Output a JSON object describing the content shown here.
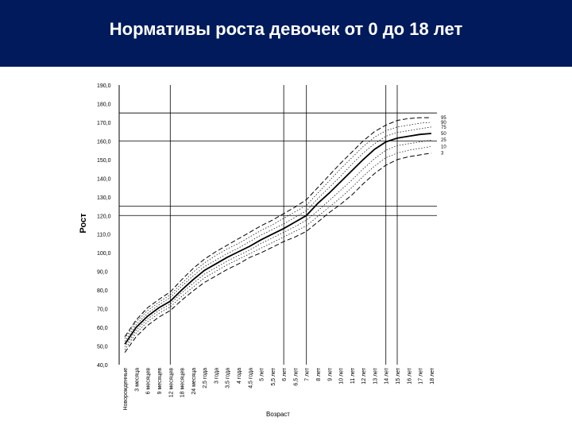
{
  "header": {
    "title": "Нормативы роста девочек от 0 до 18 лет",
    "background_color": "#001a5c"
  },
  "chart_data": {
    "type": "line",
    "title": "Нормативы роста девочек от 0 до 18 лет",
    "xlabel": "Возраст",
    "ylabel": "Рост",
    "ylim": [
      40,
      190
    ],
    "y_ticks": [
      "190,0",
      "180,0",
      "170,0",
      "160,0",
      "150,0",
      "140,0",
      "130,0",
      "120,0",
      "110,0",
      "100,0",
      "90,0",
      "80,0",
      "70,0",
      "60,0",
      "50,0",
      "40,0"
    ],
    "categories": [
      "Новорожденные",
      "3 месяца",
      "6 месяцев",
      "9 месяцев",
      "12 месяцев",
      "18 месяцев",
      "24 месяца",
      "2,5 года",
      "3 года",
      "3,5 года",
      "4 года",
      "4,5 года",
      "5 лет",
      "5,5 лет",
      "6 лет",
      "6,5 лет",
      "7 лет",
      "8 лет",
      "9 лет",
      "10 лет",
      "11 лет",
      "12 лет",
      "13 лет",
      "14 лет",
      "15 лет",
      "16 лет",
      "17 лет",
      "18 лет"
    ],
    "series": [
      {
        "name": "3",
        "style": "dashed",
        "values": [
          46.5,
          55.0,
          61.0,
          65.5,
          69.0,
          74.5,
          79.5,
          84.0,
          87.5,
          91.0,
          94.0,
          97.5,
          100.0,
          103.0,
          106.0,
          108.5,
          111.5,
          116.5,
          121.5,
          126.0,
          131.0,
          137.0,
          142.5,
          147.0,
          150.0,
          151.5,
          152.5,
          153.5
        ]
      },
      {
        "name": "10",
        "style": "dotted",
        "values": [
          48.0,
          57.0,
          63.0,
          67.5,
          71.0,
          76.5,
          81.5,
          86.5,
          90.0,
          93.5,
          96.5,
          99.5,
          102.5,
          105.5,
          108.5,
          111.5,
          114.5,
          119.5,
          124.5,
          129.5,
          135.0,
          141.0,
          146.5,
          151.0,
          153.5,
          155.0,
          156.0,
          157.0
        ]
      },
      {
        "name": "25",
        "style": "dotted",
        "values": [
          49.5,
          58.5,
          64.5,
          69.0,
          72.5,
          78.5,
          83.5,
          88.5,
          92.0,
          95.5,
          98.5,
          101.5,
          105.0,
          108.0,
          111.0,
          114.0,
          117.5,
          122.5,
          128.0,
          133.5,
          139.0,
          145.0,
          150.5,
          155.0,
          157.5,
          158.5,
          159.5,
          160.5
        ]
      },
      {
        "name": "50",
        "style": "solid",
        "values": [
          51.0,
          60.0,
          66.0,
          70.5,
          74.0,
          80.0,
          85.5,
          90.5,
          94.0,
          97.5,
          100.5,
          103.5,
          107.0,
          110.0,
          113.0,
          116.5,
          120.0,
          126.5,
          132.0,
          138.0,
          144.0,
          150.0,
          155.5,
          159.5,
          161.5,
          162.5,
          163.5,
          164.0
        ]
      },
      {
        "name": "75",
        "style": "dotted",
        "values": [
          52.5,
          61.5,
          67.5,
          72.0,
          76.0,
          82.0,
          87.5,
          92.5,
          96.0,
          99.5,
          102.5,
          106.0,
          109.5,
          112.5,
          115.5,
          119.0,
          122.5,
          129.0,
          135.0,
          141.0,
          147.5,
          153.5,
          158.5,
          162.5,
          164.5,
          165.5,
          166.5,
          167.5
        ]
      },
      {
        "name": "90",
        "style": "dotted",
        "values": [
          54.0,
          63.0,
          69.0,
          73.5,
          77.5,
          83.5,
          89.5,
          94.5,
          98.5,
          102.0,
          105.0,
          108.5,
          112.0,
          115.0,
          118.5,
          122.0,
          125.5,
          132.0,
          138.5,
          145.0,
          151.0,
          157.0,
          162.0,
          165.5,
          167.5,
          168.5,
          169.5,
          170.0
        ]
      },
      {
        "name": "95",
        "style": "dashed",
        "values": [
          55.0,
          64.0,
          70.5,
          75.0,
          79.0,
          85.5,
          91.5,
          96.5,
          100.5,
          104.0,
          107.5,
          111.0,
          114.5,
          117.5,
          121.0,
          124.5,
          128.5,
          135.0,
          141.5,
          148.0,
          154.0,
          160.0,
          165.0,
          168.5,
          171.0,
          172.0,
          172.5,
          172.5
        ]
      }
    ],
    "horizontal_lines_y": [
      120,
      125,
      160,
      175
    ],
    "vertical_lines_at": [
      "12 месяцев",
      "6 лет",
      "7 лет",
      "14 лет",
      "15 лет"
    ],
    "grid": false,
    "legend": "right"
  }
}
